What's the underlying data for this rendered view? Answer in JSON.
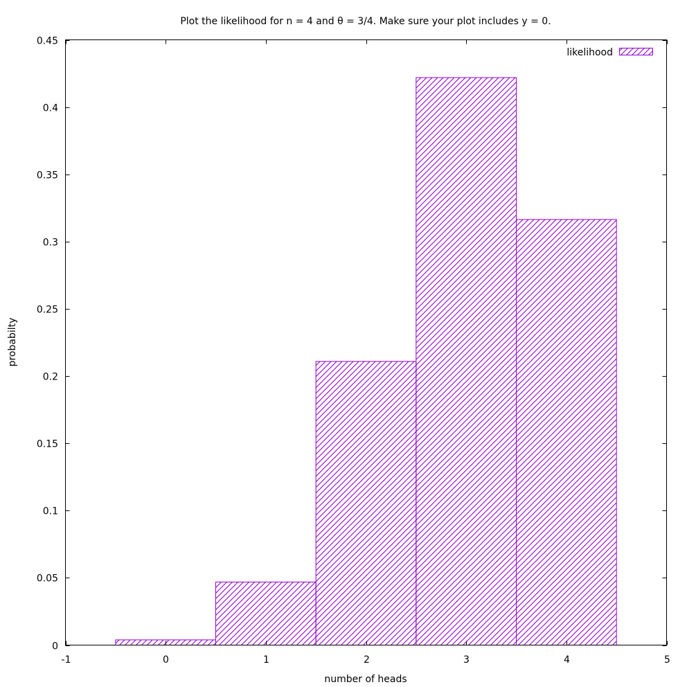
{
  "chart_data": {
    "type": "bar",
    "title": "Plot the likelihood for n = 4 and θ = 3/4. Make sure your plot includes y = 0.",
    "xlabel": "number of heads",
    "ylabel": "probabilty",
    "x": [
      0,
      1,
      2,
      3,
      4
    ],
    "series": [
      {
        "name": "likelihood",
        "values": [
          0.0039,
          0.0469,
          0.2109,
          0.4219,
          0.3164
        ],
        "color": "#9400d3",
        "fill": "diagonal-hatch"
      }
    ],
    "bar_width": 1,
    "xlim": [
      -1,
      5
    ],
    "ylim": [
      0,
      0.45
    ],
    "xticks": [
      -1,
      0,
      1,
      2,
      3,
      4,
      5
    ],
    "xtick_labels": [
      "-1",
      "0",
      "1",
      "2",
      "3",
      "4",
      "5"
    ],
    "yticks": [
      0,
      0.05,
      0.1,
      0.15,
      0.2,
      0.25,
      0.3,
      0.35,
      0.4,
      0.45
    ],
    "ytick_labels": [
      "0",
      "0.05",
      "0.1",
      "0.15",
      "0.2",
      "0.25",
      "0.3",
      "0.35",
      "0.4",
      "0.45"
    ],
    "grid": false,
    "legend_position": "top-right"
  }
}
